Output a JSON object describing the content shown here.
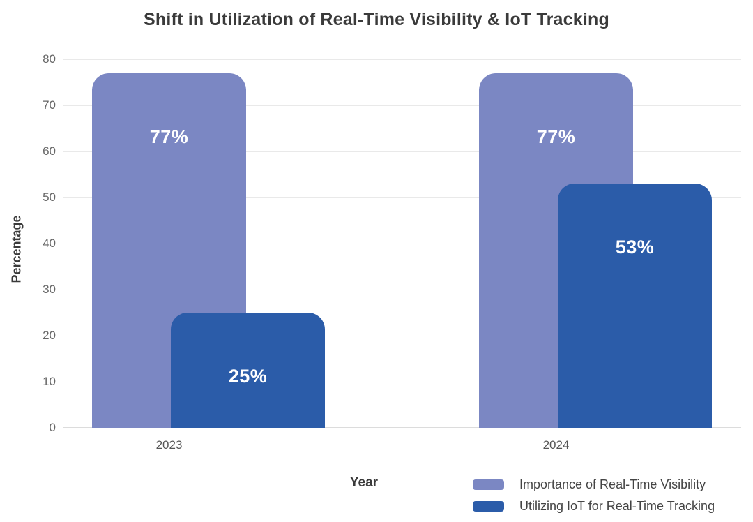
{
  "chart_data": {
    "type": "bar",
    "title": "Shift in Utilization of Real-Time Visibility & IoT Tracking",
    "xlabel": "Year",
    "ylabel": "Percentage",
    "categories": [
      "2023",
      "2024"
    ],
    "series": [
      {
        "name": "Importance of Real-Time Visibility",
        "values": [
          77,
          77
        ],
        "labels": [
          "77%",
          "77%"
        ],
        "color": "#7b87c3"
      },
      {
        "name": "Utilizing IoT for Real-Time Tracking",
        "values": [
          25,
          53
        ],
        "labels": [
          "25%",
          "53%"
        ],
        "color": "#2b5ca9"
      }
    ],
    "ylim": [
      0,
      80
    ],
    "yticks": [
      0,
      10,
      20,
      30,
      40,
      50,
      60,
      70,
      80
    ],
    "grid": true,
    "legend_position": "bottom-right",
    "value_label_color": "#ffffff",
    "gridline_color": "#e9e9e9",
    "baseline_color": "#dcdcdc",
    "title_color": "#3a3a3a",
    "tick_color": "#666666"
  }
}
